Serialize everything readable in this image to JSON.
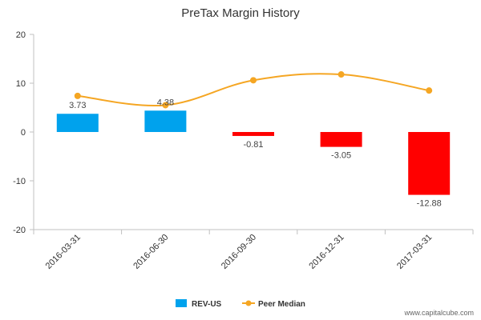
{
  "chart_data": {
    "type": "bar",
    "title": "PreTax Margin History",
    "categories": [
      "2016-03-31",
      "2016-06-30",
      "2016-09-30",
      "2016-12-31",
      "2017-03-31"
    ],
    "ylim": [
      -20,
      20
    ],
    "yticks": [
      "20",
      "10",
      "0",
      "-10",
      "-20"
    ],
    "ytick_values": [
      20,
      10,
      0,
      -10,
      -20
    ],
    "series": [
      {
        "name": "REV-US",
        "kind": "bar",
        "values": [
          3.73,
          4.38,
          -0.81,
          -3.05,
          -12.88
        ],
        "labels": [
          "3.73",
          "4.38",
          "-0.81",
          "-3.05",
          "-12.88"
        ],
        "color_positive": "#00a2ed",
        "color_negative": "#ff0000"
      },
      {
        "name": "Peer Median",
        "kind": "line",
        "values": [
          7.4,
          5.5,
          10.6,
          11.8,
          8.5
        ],
        "color": "#f5a623"
      }
    ],
    "legend_placement": "bottom-center",
    "grid": false
  },
  "legend": {
    "rev_label": "REV-US",
    "peer_label": "Peer Median"
  },
  "watermark": "www.capitalcube.com"
}
